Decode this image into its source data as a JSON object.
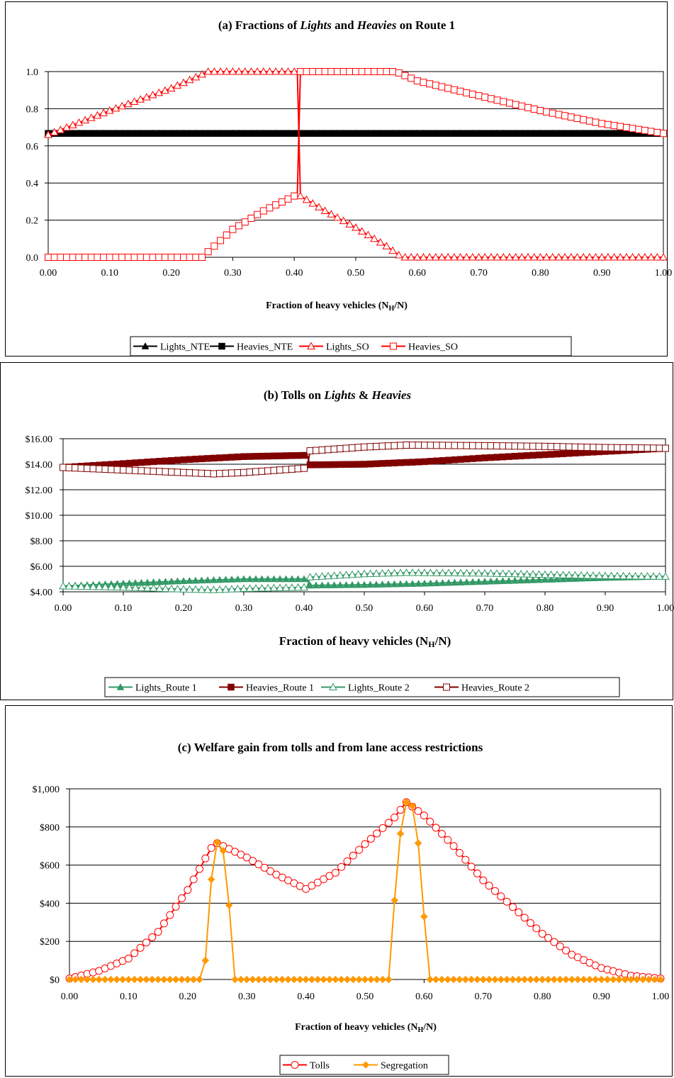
{
  "chart_data": [
    {
      "type": "line",
      "title_parts": [
        "(a) Fractions of ",
        "Lights",
        " and ",
        "Heavies",
        " on Route 1"
      ],
      "xlabel_parts": [
        "Fraction of heavy vehicles (N",
        "H",
        "/N)"
      ],
      "ylabel": "",
      "xlim": [
        0,
        1
      ],
      "ylim": [
        0,
        1
      ],
      "x_ticks": [
        "0.00",
        "0.10",
        "0.20",
        "0.30",
        "0.40",
        "0.50",
        "0.60",
        "0.70",
        "0.80",
        "0.90",
        "1.00"
      ],
      "y_ticks": [
        "0.0",
        "0.2",
        "0.4",
        "0.6",
        "0.8",
        "1.0"
      ],
      "grid": "horizontal",
      "legend_position": "bottom",
      "series": [
        {
          "name": "Lights_NTE",
          "color": "#000000",
          "marker": "triangle-filled",
          "points": [
            [
              0,
              0.667
            ],
            [
              1,
              0.667
            ]
          ]
        },
        {
          "name": "Heavies_NTE",
          "color": "#000000",
          "marker": "square-filled",
          "points": [
            [
              0,
              0.667
            ],
            [
              1,
              0.667
            ]
          ]
        },
        {
          "name": "Lights_SO",
          "color": "#ff0000",
          "marker": "triangle-open",
          "points": [
            [
              0,
              0.66
            ],
            [
              0.1,
              0.79
            ],
            [
              0.2,
              0.91
            ],
            [
              0.26,
              1.0
            ],
            [
              0.405,
              1.0
            ],
            [
              0.41,
              0.33
            ],
            [
              0.45,
              0.25
            ],
            [
              0.5,
              0.16
            ],
            [
              0.55,
              0.06
            ],
            [
              0.575,
              0.0
            ],
            [
              1.0,
              0.0
            ]
          ]
        },
        {
          "name": "Heavies_SO",
          "color": "#ff0000",
          "marker": "square-open",
          "points": [
            [
              0,
              0.0
            ],
            [
              0.25,
              0.0
            ],
            [
              0.27,
              0.06
            ],
            [
              0.3,
              0.15
            ],
            [
              0.35,
              0.25
            ],
            [
              0.4,
              0.33
            ],
            [
              0.405,
              0.34
            ],
            [
              0.41,
              1.0
            ],
            [
              0.565,
              1.0
            ],
            [
              0.6,
              0.95
            ],
            [
              0.7,
              0.87
            ],
            [
              0.8,
              0.79
            ],
            [
              0.9,
              0.72
            ],
            [
              1.0,
              0.667
            ]
          ]
        }
      ]
    },
    {
      "type": "line",
      "title_parts": [
        "(b) Tolls on ",
        "Lights",
        " & ",
        "Heavies"
      ],
      "xlabel_parts": [
        "Fraction of heavy vehicles (N",
        "H",
        "/N)"
      ],
      "ylabel": "",
      "xlim": [
        0,
        1
      ],
      "ylim": [
        4,
        16
      ],
      "x_ticks": [
        "0.00",
        "0.10",
        "0.20",
        "0.30",
        "0.40",
        "0.50",
        "0.60",
        "0.70",
        "0.80",
        "0.90",
        "1.00"
      ],
      "y_ticks": [
        "$4.00",
        "$6.00",
        "$8.00",
        "$10.00",
        "$12.00",
        "$14.00",
        "$16.00"
      ],
      "grid": "horizontal",
      "legend_position": "bottom",
      "series": [
        {
          "name": "Lights_Route 1",
          "color": "#339966",
          "marker": "triangle-filled",
          "points": [
            [
              0,
              4.45
            ],
            [
              0.1,
              4.65
            ],
            [
              0.2,
              4.85
            ],
            [
              0.3,
              5.0
            ],
            [
              0.405,
              5.0
            ],
            [
              0.41,
              4.5
            ],
            [
              0.5,
              4.55
            ],
            [
              0.6,
              4.65
            ],
            [
              0.7,
              4.8
            ],
            [
              0.8,
              4.95
            ],
            [
              0.9,
              5.1
            ],
            [
              1.0,
              5.2
            ]
          ]
        },
        {
          "name": "Heavies_Route 1",
          "color": "#800000",
          "marker": "square-filled",
          "points": [
            [
              0,
              13.75
            ],
            [
              0.1,
              14.05
            ],
            [
              0.2,
              14.35
            ],
            [
              0.3,
              14.6
            ],
            [
              0.405,
              14.7
            ],
            [
              0.41,
              13.95
            ],
            [
              0.5,
              14.0
            ],
            [
              0.6,
              14.2
            ],
            [
              0.7,
              14.5
            ],
            [
              0.8,
              14.75
            ],
            [
              0.9,
              15.0
            ],
            [
              1.0,
              15.25
            ]
          ]
        },
        {
          "name": "Lights_Route 2",
          "color": "#339966",
          "marker": "triangle-open",
          "points": [
            [
              0,
              4.45
            ],
            [
              0.1,
              4.35
            ],
            [
              0.2,
              4.2
            ],
            [
              0.25,
              4.15
            ],
            [
              0.3,
              4.25
            ],
            [
              0.405,
              4.35
            ],
            [
              0.41,
              5.15
            ],
            [
              0.5,
              5.4
            ],
            [
              0.57,
              5.5
            ],
            [
              0.7,
              5.45
            ],
            [
              0.8,
              5.35
            ],
            [
              0.9,
              5.25
            ],
            [
              1.0,
              5.2
            ]
          ]
        },
        {
          "name": "Heavies_Route 2",
          "color": "#800000",
          "marker": "square-open",
          "points": [
            [
              0,
              13.75
            ],
            [
              0.1,
              13.55
            ],
            [
              0.2,
              13.35
            ],
            [
              0.25,
              13.25
            ],
            [
              0.3,
              13.35
            ],
            [
              0.405,
              13.7
            ],
            [
              0.41,
              15.05
            ],
            [
              0.5,
              15.35
            ],
            [
              0.57,
              15.5
            ],
            [
              0.7,
              15.45
            ],
            [
              0.8,
              15.4
            ],
            [
              0.9,
              15.3
            ],
            [
              1.0,
              15.25
            ]
          ]
        }
      ]
    },
    {
      "type": "line",
      "title_parts": [
        "(c) Welfare gain from tolls and from lane access restrictions"
      ],
      "xlabel_parts": [
        "Fraction of heavy vehicles (N",
        "H",
        "/N)"
      ],
      "ylabel": "",
      "xlim": [
        0,
        1
      ],
      "ylim": [
        0,
        1000
      ],
      "x_ticks": [
        "0.00",
        "0.10",
        "0.20",
        "0.30",
        "0.40",
        "0.50",
        "0.60",
        "0.70",
        "0.80",
        "0.90",
        "1.00"
      ],
      "y_ticks": [
        "$0",
        "$200",
        "$400",
        "$600",
        "$800",
        "$1,000"
      ],
      "grid": "horizontal",
      "legend_position": "bottom",
      "series": [
        {
          "name": "Tolls",
          "color": "#ff0000",
          "marker": "circle-open",
          "points": [
            [
              0,
              5
            ],
            [
              0.05,
              45
            ],
            [
              0.1,
              110
            ],
            [
              0.15,
              250
            ],
            [
              0.2,
              470
            ],
            [
              0.24,
              690
            ],
            [
              0.25,
              715
            ],
            [
              0.3,
              640
            ],
            [
              0.35,
              550
            ],
            [
              0.4,
              475
            ],
            [
              0.45,
              560
            ],
            [
              0.5,
              710
            ],
            [
              0.55,
              850
            ],
            [
              0.57,
              930
            ],
            [
              0.6,
              860
            ],
            [
              0.65,
              700
            ],
            [
              0.7,
              520
            ],
            [
              0.75,
              380
            ],
            [
              0.8,
              240
            ],
            [
              0.85,
              130
            ],
            [
              0.9,
              60
            ],
            [
              0.95,
              20
            ],
            [
              1.0,
              5
            ]
          ]
        },
        {
          "name": "Segregation",
          "color": "#ff9900",
          "marker": "diamond-filled",
          "points": [
            [
              0,
              0
            ],
            [
              0.22,
              0
            ],
            [
              0.23,
              100
            ],
            [
              0.24,
              525
            ],
            [
              0.25,
              720
            ],
            [
              0.26,
              675
            ],
            [
              0.27,
              390
            ],
            [
              0.28,
              0
            ],
            [
              0.54,
              0
            ],
            [
              0.55,
              415
            ],
            [
              0.56,
              765
            ],
            [
              0.57,
              930
            ],
            [
              0.58,
              910
            ],
            [
              0.59,
              715
            ],
            [
              0.6,
              330
            ],
            [
              0.61,
              0
            ],
            [
              1.0,
              0
            ]
          ]
        }
      ]
    }
  ]
}
